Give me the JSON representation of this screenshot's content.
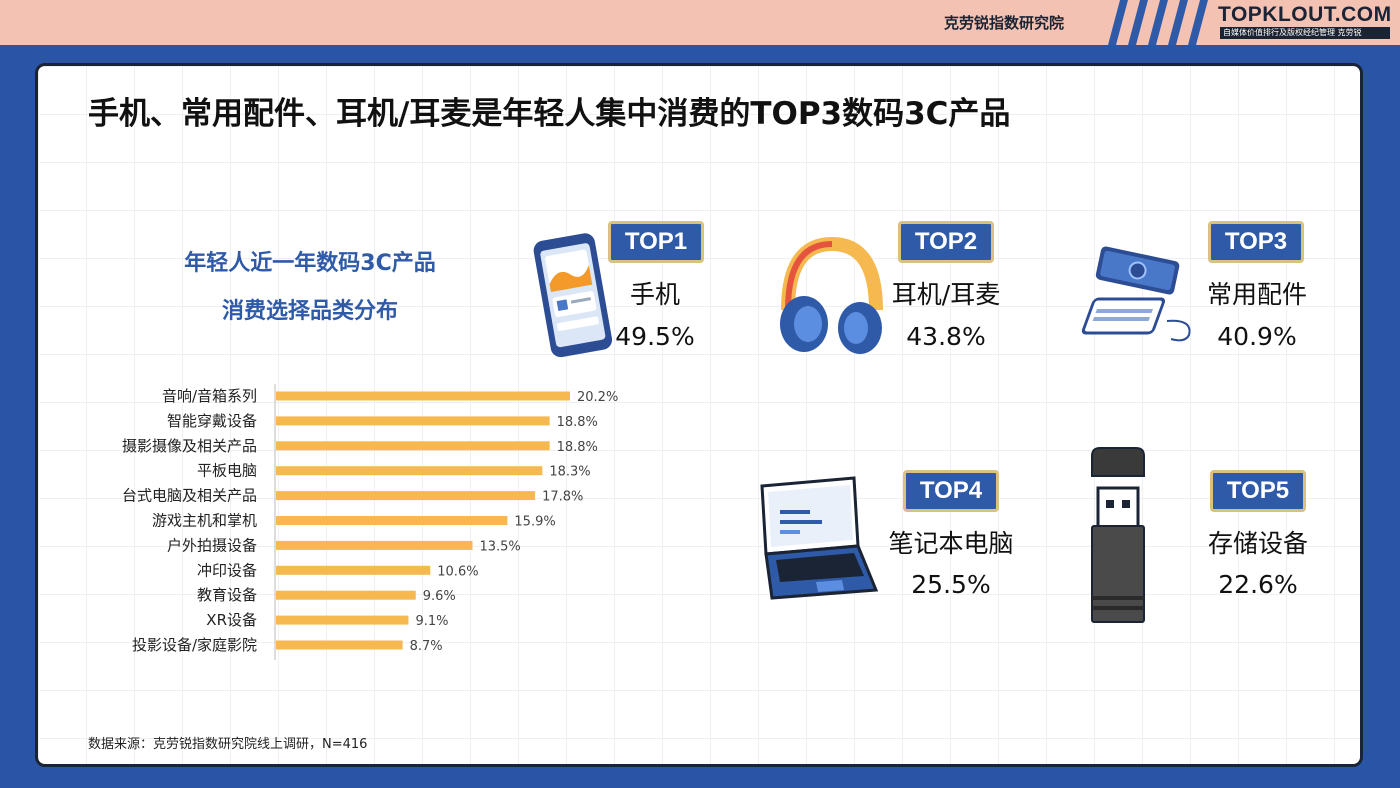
{
  "header": {
    "org": "克劳锐指数研究院",
    "brand": "TOPKLOUT.COM",
    "brand_sub": "自媒体价值排行及版权经纪管理 克劳锐"
  },
  "title": "手机、常用配件、耳机/耳麦是年轻人集中消费的TOP3数码3C产品",
  "subtitle_lines": [
    "年轻人近一年数码3C产品",
    "消费选择品类分布"
  ],
  "top_items": [
    {
      "rank": "TOP1",
      "name": "手机",
      "pct": "49.5%",
      "icon": "smartphone-icon"
    },
    {
      "rank": "TOP2",
      "name": "耳机/耳麦",
      "pct": "43.8%",
      "icon": "headphones-icon"
    },
    {
      "rank": "TOP3",
      "name": "常用配件",
      "pct": "40.9%",
      "icon": "power-bank-icon"
    },
    {
      "rank": "TOP4",
      "name": "笔记本电脑",
      "pct": "25.5%",
      "icon": "laptop-icon"
    },
    {
      "rank": "TOP5",
      "name": "存储设备",
      "pct": "22.6%",
      "icon": "usb-drive-icon"
    }
  ],
  "chart_data": {
    "type": "bar",
    "orientation": "horizontal",
    "title": "",
    "categories": [
      "音响/音箱系列",
      "智能穿戴设备",
      "摄影摄像及相关产品",
      "平板电脑",
      "台式电脑及相关产品",
      "游戏主机和掌机",
      "户外拍摄设备",
      "冲印设备",
      "教育设备",
      "XR设备",
      "投影设备/家庭影院"
    ],
    "values": [
      20.2,
      18.8,
      18.8,
      18.3,
      17.8,
      15.9,
      13.5,
      10.6,
      9.6,
      9.1,
      8.7
    ],
    "value_labels": [
      "20.2%",
      "18.8%",
      "18.8%",
      "18.3%",
      "17.8%",
      "15.9%",
      "13.5%",
      "10.6%",
      "9.6%",
      "9.1%",
      "8.7%"
    ],
    "bar_color": "#f5b94f"
  },
  "source": "数据来源：克劳锐指数研究院线上调研，N=416"
}
